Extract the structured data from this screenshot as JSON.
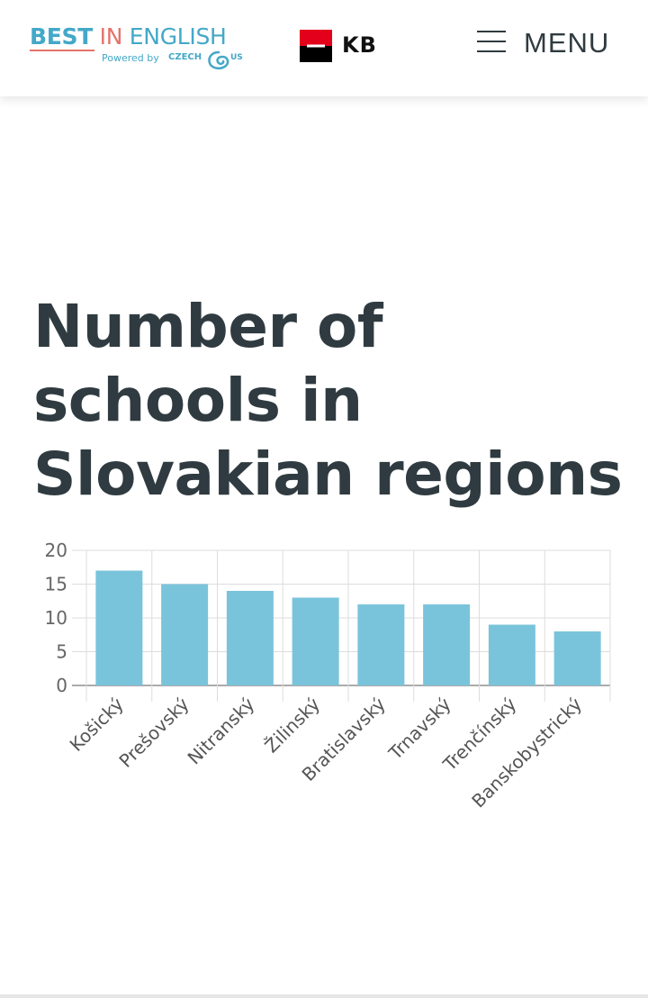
{
  "header": {
    "brand": {
      "best": "BEST",
      "in": "IN",
      "english": "ENGLISH",
      "powered": "Powered by",
      "czech": "CZECH",
      "us": "US"
    },
    "sponsor": {
      "name": "KB"
    },
    "menu": {
      "label": "MENU"
    }
  },
  "page": {
    "title": "Number of schools in Slovakian regions"
  },
  "colors": {
    "accent": "#44a8c8",
    "bar": "#7ac4db",
    "title": "#2f3b40",
    "brand_red": "#e5736a"
  },
  "chart_data": {
    "type": "bar",
    "categories": [
      "Košický",
      "Prešovský",
      "Nitranský",
      "Žilinský",
      "Bratislavský",
      "Trnavský",
      "Trenčínský",
      "Banskobystrický"
    ],
    "values": [
      17,
      15,
      14,
      13,
      12,
      12,
      9,
      8
    ],
    "yticks": [
      0,
      5,
      10,
      15,
      20
    ],
    "ylim": [
      0,
      20
    ],
    "grid": true,
    "xlabel": "",
    "ylabel": ""
  }
}
